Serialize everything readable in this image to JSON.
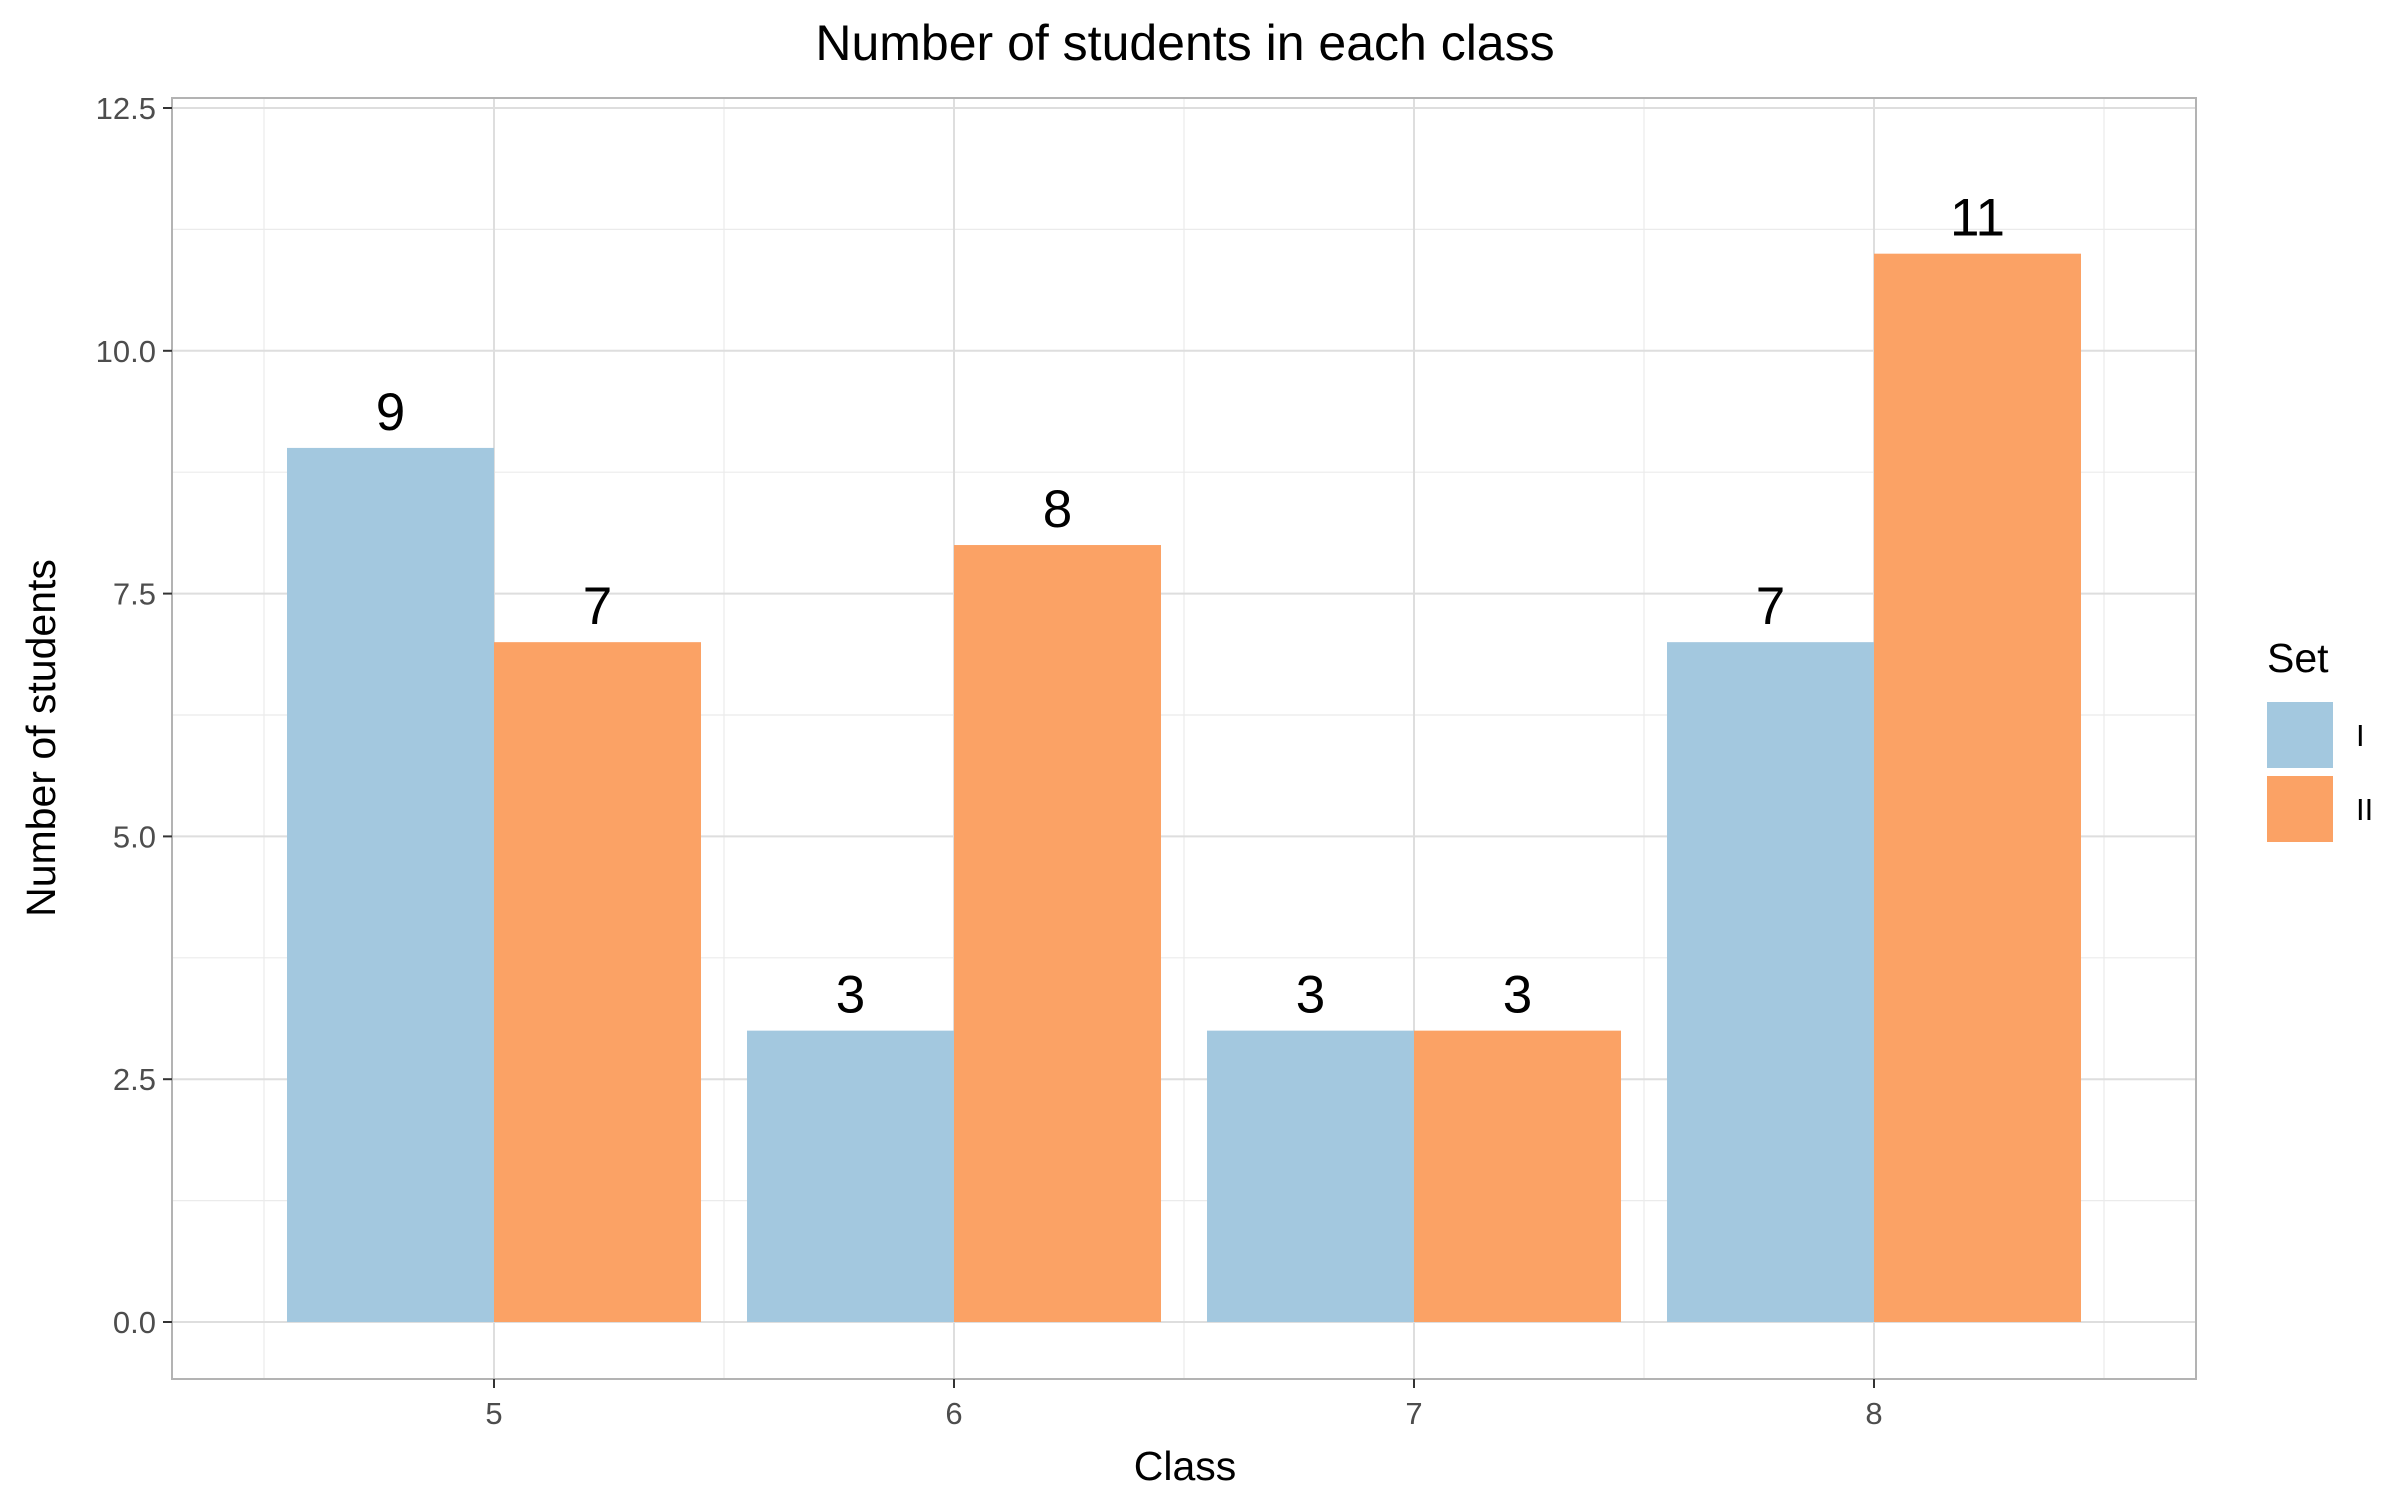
{
  "chart_data": {
    "type": "bar",
    "title": "Number of students in each class",
    "xlabel": "Class",
    "ylabel": "Number of students",
    "categories": [
      "5",
      "6",
      "7",
      "8"
    ],
    "series": [
      {
        "name": "I",
        "values": [
          9,
          3,
          3,
          7
        ],
        "color": "#a3c8df"
      },
      {
        "name": "II",
        "values": [
          7,
          8,
          3,
          11
        ],
        "color": "#fba265"
      }
    ],
    "ylim": [
      0,
      12.5
    ],
    "yticks": [
      0,
      2.5,
      5,
      7.5,
      10,
      12.5
    ],
    "ytick_labels": [
      "0.0",
      "2.5",
      "5.0",
      "7.5",
      "10.0",
      "12.5"
    ],
    "legend": {
      "title": "Set",
      "position": "right"
    },
    "grid": true
  }
}
